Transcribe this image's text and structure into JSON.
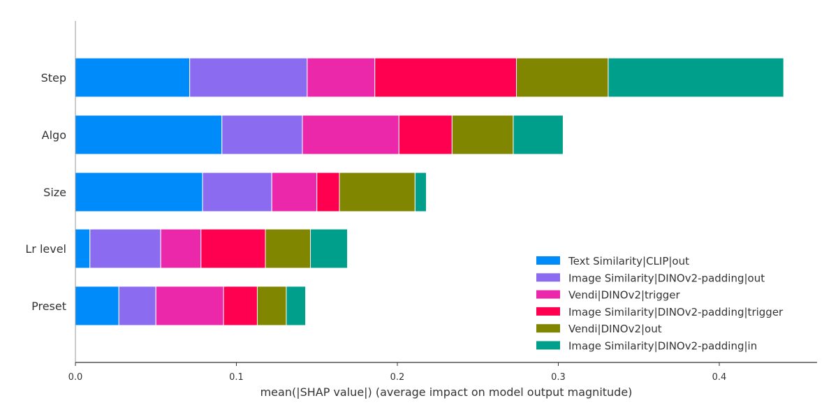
{
  "chart_data": {
    "type": "bar",
    "orientation": "horizontal",
    "stacked": true,
    "categories": [
      "Step",
      "Algo",
      "Size",
      "Lr level",
      "Preset"
    ],
    "series": [
      {
        "name": "Text Similarity|CLIP|out",
        "color": "#008bfb",
        "values": [
          0.071,
          0.091,
          0.079,
          0.009,
          0.027
        ]
      },
      {
        "name": "Image Similarity|DINOv2-padding|out",
        "color": "#8b6cf0",
        "values": [
          0.073,
          0.05,
          0.043,
          0.044,
          0.023
        ]
      },
      {
        "name": "Vendi|DINOv2|trigger",
        "color": "#ea28a9",
        "values": [
          0.042,
          0.06,
          0.028,
          0.025,
          0.042
        ]
      },
      {
        "name": "Image Similarity|DINOv2-padding|trigger",
        "color": "#ff0051",
        "values": [
          0.088,
          0.033,
          0.014,
          0.04,
          0.021
        ]
      },
      {
        "name": "Vendi|DINOv2|out",
        "color": "#808600",
        "values": [
          0.057,
          0.038,
          0.047,
          0.028,
          0.018
        ]
      },
      {
        "name": "Image Similarity|DINOv2-padding|in",
        "color": "#009f8b",
        "values": [
          0.109,
          0.031,
          0.007,
          0.023,
          0.012
        ]
      }
    ],
    "xlabel": "mean(|SHAP value|) (average impact on model output magnitude)",
    "ylabel": "",
    "title": "",
    "xlim": [
      0,
      0.461
    ],
    "xticks": [
      0.0,
      0.1,
      0.2,
      0.3,
      0.4
    ],
    "xtick_labels": [
      "0.0",
      "0.1",
      "0.2",
      "0.3",
      "0.4"
    ],
    "legend_position": "lower-right",
    "grid": false
  }
}
